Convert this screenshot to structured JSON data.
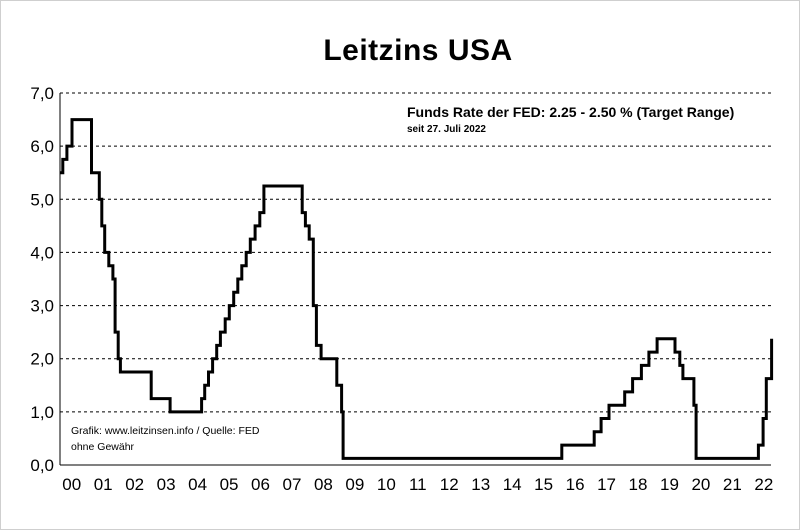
{
  "chart_data": {
    "type": "line",
    "step": true,
    "title": "Leitzins USA",
    "xlabel": "",
    "ylabel": "",
    "ylim": [
      0,
      7
    ],
    "xlim": [
      2000.0,
      2022.6
    ],
    "grid": "horizontal dashed",
    "y_ticks": [
      "0,0",
      "1,0",
      "2,0",
      "3,0",
      "4,0",
      "5,0",
      "6,0",
      "7,0"
    ],
    "x_ticks": [
      "00",
      "01",
      "02",
      "03",
      "04",
      "05",
      "06",
      "07",
      "08",
      "09",
      "10",
      "11",
      "12",
      "13",
      "14",
      "15",
      "16",
      "17",
      "18",
      "19",
      "20",
      "21",
      "22"
    ],
    "annotations": {
      "rate": "Funds Rate der FED: 2.25 - 2.50 % (Target Range)",
      "since": "seit 27. Juli 2022",
      "source": "Grafik: www.leitzinsen.info / Quelle: FED",
      "disclaimer": "ohne Gewähr"
    },
    "series": [
      {
        "color": "#000000",
        "x": [
          2000.0,
          2000.09,
          2000.22,
          2000.38,
          2001.0,
          2001.25,
          2001.33,
          2001.42,
          2001.55,
          2001.68,
          2001.75,
          2001.85,
          2001.92,
          2002.0,
          2002.9,
          2003.5,
          2004.5,
          2004.6,
          2004.72,
          2004.85,
          2004.98,
          2005.1,
          2005.25,
          2005.38,
          2005.52,
          2005.65,
          2005.78,
          2005.92,
          2006.05,
          2006.2,
          2006.35,
          2006.48,
          2007.7,
          2007.8,
          2007.92,
          2008.05,
          2008.15,
          2008.3,
          2008.8,
          2008.95,
          2009.0,
          2015.95,
          2016.98,
          2017.2,
          2017.45,
          2017.95,
          2018.2,
          2018.48,
          2018.72,
          2018.98,
          2019.55,
          2019.7,
          2019.8,
          2020.15,
          2020.22,
          2022.2,
          2022.35,
          2022.45,
          2022.62
        ],
        "y": [
          5.5,
          5.75,
          6.0,
          6.5,
          5.5,
          5.0,
          4.5,
          4.0,
          3.75,
          3.5,
          2.5,
          2.0,
          1.75,
          1.75,
          1.25,
          1.0,
          1.25,
          1.5,
          1.75,
          2.0,
          2.25,
          2.5,
          2.75,
          3.0,
          3.25,
          3.5,
          3.75,
          4.0,
          4.25,
          4.5,
          4.75,
          5.25,
          4.75,
          4.5,
          4.25,
          3.0,
          2.25,
          2.0,
          1.5,
          1.0,
          0.125,
          0.375,
          0.625,
          0.875,
          1.125,
          1.375,
          1.625,
          1.875,
          2.125,
          2.375,
          2.125,
          1.875,
          1.625,
          1.125,
          0.125,
          0.375,
          0.875,
          1.625,
          2.375
        ]
      }
    ]
  }
}
